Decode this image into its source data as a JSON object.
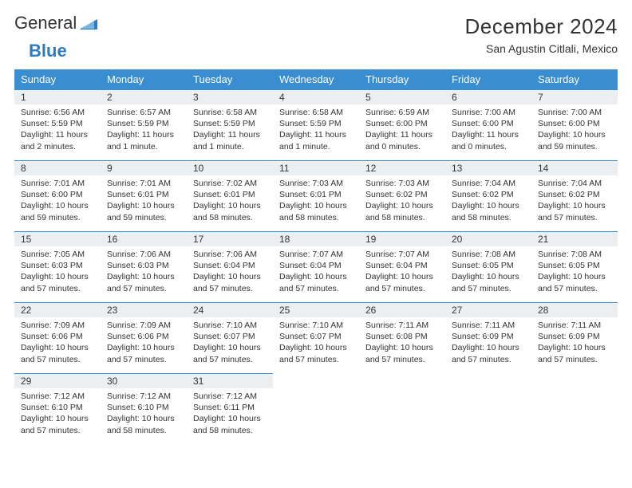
{
  "brand": {
    "word1": "General",
    "word2": "Blue"
  },
  "title": "December 2024",
  "subtitle": "San Agustin Citlali, Mexico",
  "colors": {
    "header_bg": "#3a8dd0",
    "header_fg": "#ffffff",
    "daynum_bg": "#eceff2",
    "border": "#3a8dd0",
    "text": "#333333",
    "brand_blue": "#2f7bbf"
  },
  "dayNames": [
    "Sunday",
    "Monday",
    "Tuesday",
    "Wednesday",
    "Thursday",
    "Friday",
    "Saturday"
  ],
  "days": [
    {
      "n": 1,
      "sr": "6:56 AM",
      "ss": "5:59 PM",
      "dl": "11 hours and 2 minutes."
    },
    {
      "n": 2,
      "sr": "6:57 AM",
      "ss": "5:59 PM",
      "dl": "11 hours and 1 minute."
    },
    {
      "n": 3,
      "sr": "6:58 AM",
      "ss": "5:59 PM",
      "dl": "11 hours and 1 minute."
    },
    {
      "n": 4,
      "sr": "6:58 AM",
      "ss": "5:59 PM",
      "dl": "11 hours and 1 minute."
    },
    {
      "n": 5,
      "sr": "6:59 AM",
      "ss": "6:00 PM",
      "dl": "11 hours and 0 minutes."
    },
    {
      "n": 6,
      "sr": "7:00 AM",
      "ss": "6:00 PM",
      "dl": "11 hours and 0 minutes."
    },
    {
      "n": 7,
      "sr": "7:00 AM",
      "ss": "6:00 PM",
      "dl": "10 hours and 59 minutes."
    },
    {
      "n": 8,
      "sr": "7:01 AM",
      "ss": "6:00 PM",
      "dl": "10 hours and 59 minutes."
    },
    {
      "n": 9,
      "sr": "7:01 AM",
      "ss": "6:01 PM",
      "dl": "10 hours and 59 minutes."
    },
    {
      "n": 10,
      "sr": "7:02 AM",
      "ss": "6:01 PM",
      "dl": "10 hours and 58 minutes."
    },
    {
      "n": 11,
      "sr": "7:03 AM",
      "ss": "6:01 PM",
      "dl": "10 hours and 58 minutes."
    },
    {
      "n": 12,
      "sr": "7:03 AM",
      "ss": "6:02 PM",
      "dl": "10 hours and 58 minutes."
    },
    {
      "n": 13,
      "sr": "7:04 AM",
      "ss": "6:02 PM",
      "dl": "10 hours and 58 minutes."
    },
    {
      "n": 14,
      "sr": "7:04 AM",
      "ss": "6:02 PM",
      "dl": "10 hours and 57 minutes."
    },
    {
      "n": 15,
      "sr": "7:05 AM",
      "ss": "6:03 PM",
      "dl": "10 hours and 57 minutes."
    },
    {
      "n": 16,
      "sr": "7:06 AM",
      "ss": "6:03 PM",
      "dl": "10 hours and 57 minutes."
    },
    {
      "n": 17,
      "sr": "7:06 AM",
      "ss": "6:04 PM",
      "dl": "10 hours and 57 minutes."
    },
    {
      "n": 18,
      "sr": "7:07 AM",
      "ss": "6:04 PM",
      "dl": "10 hours and 57 minutes."
    },
    {
      "n": 19,
      "sr": "7:07 AM",
      "ss": "6:04 PM",
      "dl": "10 hours and 57 minutes."
    },
    {
      "n": 20,
      "sr": "7:08 AM",
      "ss": "6:05 PM",
      "dl": "10 hours and 57 minutes."
    },
    {
      "n": 21,
      "sr": "7:08 AM",
      "ss": "6:05 PM",
      "dl": "10 hours and 57 minutes."
    },
    {
      "n": 22,
      "sr": "7:09 AM",
      "ss": "6:06 PM",
      "dl": "10 hours and 57 minutes."
    },
    {
      "n": 23,
      "sr": "7:09 AM",
      "ss": "6:06 PM",
      "dl": "10 hours and 57 minutes."
    },
    {
      "n": 24,
      "sr": "7:10 AM",
      "ss": "6:07 PM",
      "dl": "10 hours and 57 minutes."
    },
    {
      "n": 25,
      "sr": "7:10 AM",
      "ss": "6:07 PM",
      "dl": "10 hours and 57 minutes."
    },
    {
      "n": 26,
      "sr": "7:11 AM",
      "ss": "6:08 PM",
      "dl": "10 hours and 57 minutes."
    },
    {
      "n": 27,
      "sr": "7:11 AM",
      "ss": "6:09 PM",
      "dl": "10 hours and 57 minutes."
    },
    {
      "n": 28,
      "sr": "7:11 AM",
      "ss": "6:09 PM",
      "dl": "10 hours and 57 minutes."
    },
    {
      "n": 29,
      "sr": "7:12 AM",
      "ss": "6:10 PM",
      "dl": "10 hours and 57 minutes."
    },
    {
      "n": 30,
      "sr": "7:12 AM",
      "ss": "6:10 PM",
      "dl": "10 hours and 58 minutes."
    },
    {
      "n": 31,
      "sr": "7:12 AM",
      "ss": "6:11 PM",
      "dl": "10 hours and 58 minutes."
    }
  ],
  "labels": {
    "sunrise": "Sunrise:",
    "sunset": "Sunset:",
    "daylight": "Daylight:"
  }
}
